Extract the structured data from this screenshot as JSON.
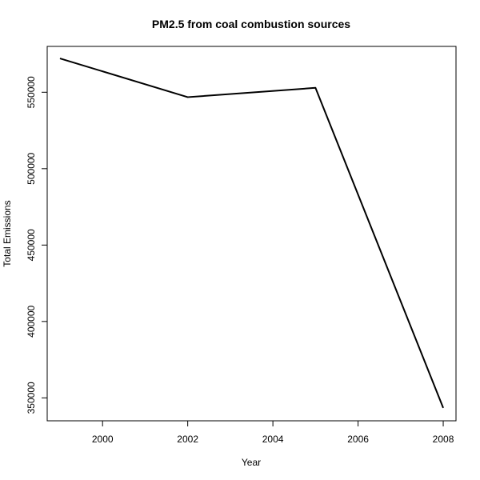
{
  "chart_data": {
    "type": "line",
    "title": "PM2.5 from coal combustion sources",
    "xlabel": "Year",
    "ylabel": "Total Emissions",
    "x": [
      1999,
      2002,
      2005,
      2008
    ],
    "series": [
      {
        "values": [
          572126,
          546789,
          552881,
          343432
        ]
      }
    ],
    "xlim": [
      1998.7,
      2008.3
    ],
    "ylim": [
      335000,
      580000
    ],
    "x_ticks": [
      2000,
      2002,
      2004,
      2006,
      2008
    ],
    "x_tick_labels": [
      "2000",
      "2002",
      "2004",
      "2006",
      "2008"
    ],
    "y_ticks": [
      350000,
      400000,
      450000,
      500000,
      550000
    ],
    "y_tick_labels": [
      "350000",
      "400000",
      "450000",
      "500000",
      "550000"
    ],
    "grid": false,
    "line_color": "#000000"
  }
}
